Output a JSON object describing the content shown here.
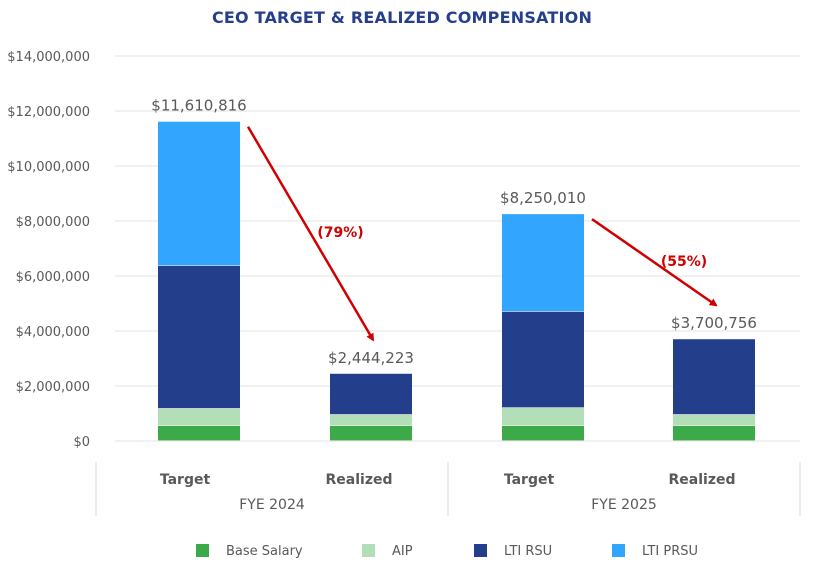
{
  "chart_data": {
    "type": "bar",
    "stacked": true,
    "title": "CEO TARGET & REALIZED COMPENSATION",
    "xlabel": "",
    "ylabel": "",
    "ylim": [
      0,
      14000000
    ],
    "yticks": [
      0,
      2000000,
      4000000,
      6000000,
      8000000,
      10000000,
      12000000,
      14000000
    ],
    "ytick_labels": [
      "$0",
      "$2,000,000",
      "$4,000,000",
      "$6,000,000",
      "$8,000,000",
      "$10,000,000",
      "$12,000,000",
      "$14,000,000"
    ],
    "grid": true,
    "groups": [
      {
        "label": "FYE 2024",
        "categories": [
          "Target",
          "Realized"
        ]
      },
      {
        "label": "FYE 2025",
        "categories": [
          "Target",
          "Realized"
        ]
      }
    ],
    "categories": [
      "Target",
      "Realized",
      "Target",
      "Realized"
    ],
    "series": [
      {
        "name": "Base Salary",
        "color": "#3DAA4A",
        "values": [
          550000,
          550000,
          550000,
          550000
        ]
      },
      {
        "name": "AIP",
        "color": "#B3DFB8",
        "values": [
          620000,
          400000,
          650000,
          400000
        ]
      },
      {
        "name": "LTI RSU",
        "color": "#233E8B",
        "values": [
          5200000,
          1494223,
          3500000,
          2750756
        ]
      },
      {
        "name": "LTI PRSU",
        "color": "#32A6FF",
        "values": [
          5240816,
          0,
          3550010,
          0
        ]
      }
    ],
    "totals": [
      11610816,
      2444223,
      8250010,
      3700756
    ],
    "total_labels": [
      "$11,610,816",
      "$2,444,223",
      "$8,250,010",
      "$3,700,756"
    ],
    "annotations": [
      {
        "text": "(79%)",
        "type": "arrow",
        "from_category": 0,
        "to_category": 1,
        "color": "#D10000"
      },
      {
        "text": "(55%)",
        "type": "arrow",
        "from_category": 2,
        "to_category": 3,
        "color": "#D10000"
      }
    ],
    "legend": {
      "placement": "bottom",
      "entries": [
        "Base Salary",
        "AIP",
        "LTI RSU",
        "LTI PRSU"
      ]
    }
  }
}
